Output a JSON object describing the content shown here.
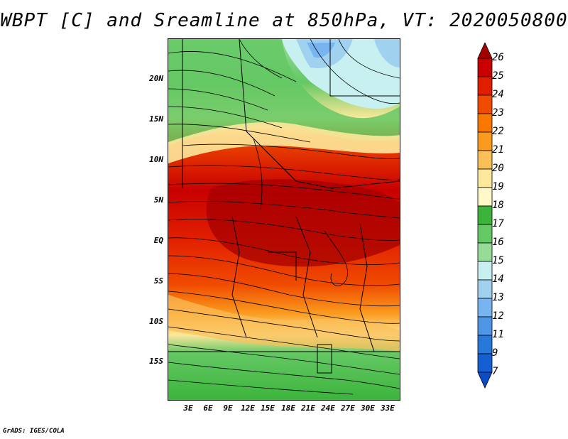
{
  "title": "WBPT [C] and Sreamline at 850hPa, VT: 2020050800",
  "credit": "GrADS: IGES/COLA",
  "lat_labels": [
    "20N",
    "15N",
    "10N",
    "5N",
    "EQ",
    "5S",
    "10S",
    "15S"
  ],
  "lon_labels": [
    "3E",
    "6E",
    "9E",
    "12E",
    "15E",
    "18E",
    "21E",
    "24E",
    "27E",
    "30E",
    "33E"
  ],
  "colorbar": {
    "labels": [
      "26",
      "25",
      "24",
      "23",
      "22",
      "21",
      "20",
      "19",
      "18",
      "17",
      "16",
      "15",
      "14",
      "13",
      "12",
      "11",
      "9",
      "7"
    ],
    "colors": [
      "#a50000",
      "#c80000",
      "#e11e00",
      "#f04b00",
      "#fa7800",
      "#fa9b1e",
      "#fbbf5a",
      "#fde89b",
      "#fff8c8",
      "#3cb43c",
      "#64c864",
      "#96dc96",
      "#c8f0f0",
      "#a0d2f0",
      "#78b4f0",
      "#5096e6",
      "#2878dc",
      "#1460d2",
      "#0a4bc8"
    ]
  }
}
